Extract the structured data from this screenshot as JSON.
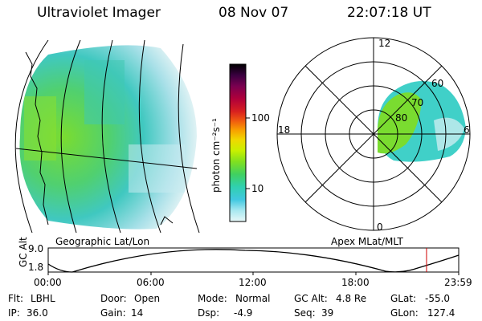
{
  "header": {
    "instrument": "Ultraviolet Imager",
    "date": "08 Nov 07",
    "time": "22:07:18 UT"
  },
  "geo_panel": {
    "caption": "Geographic Lat/Lon"
  },
  "colorbar": {
    "label": "photon cm⁻²s⁻¹",
    "ticks": [
      "100",
      "10"
    ],
    "colors": [
      "#000000",
      "#3a0040",
      "#7a0050",
      "#b0003a",
      "#d82020",
      "#f05a10",
      "#f8a000",
      "#f0d800",
      "#c8f000",
      "#80e020",
      "#40d060",
      "#30d0b0",
      "#40c8e0",
      "#a8e8f0",
      "#e8f8f8"
    ]
  },
  "polar_panel": {
    "caption": "Apex MLat/MLT",
    "mlt_labels": {
      "top": "12",
      "left": "18",
      "right": "6",
      "bottom": "0"
    },
    "lat_labels": [
      "60",
      "70",
      "80"
    ]
  },
  "alt_plot": {
    "ylabel": "GC Alt",
    "yticks": [
      "9.0",
      "1.8"
    ],
    "xticks": [
      "00:00",
      "06:00",
      "12:00",
      "18:00",
      "23:59"
    ],
    "current_marker_hour": 22.12
  },
  "info": {
    "flt_label": "Flt:",
    "flt_value": "LBHL",
    "ip_label": "IP:",
    "ip_value": "36.0",
    "door_label": "Door:",
    "door_value": "Open",
    "gain_label": "Gain:",
    "gain_value": "14",
    "mode_label": "Mode:",
    "mode_value": "Normal",
    "dsp_label": "Dsp:",
    "dsp_value": "-4.9",
    "gcalt_label": "GC Alt:",
    "gcalt_value": "4.8 Re",
    "seq_label": "Seq:",
    "seq_value": "39",
    "glat_label": "GLat:",
    "glat_value": "-55.0",
    "glon_label": "GLon:",
    "glon_value": "127.4"
  }
}
